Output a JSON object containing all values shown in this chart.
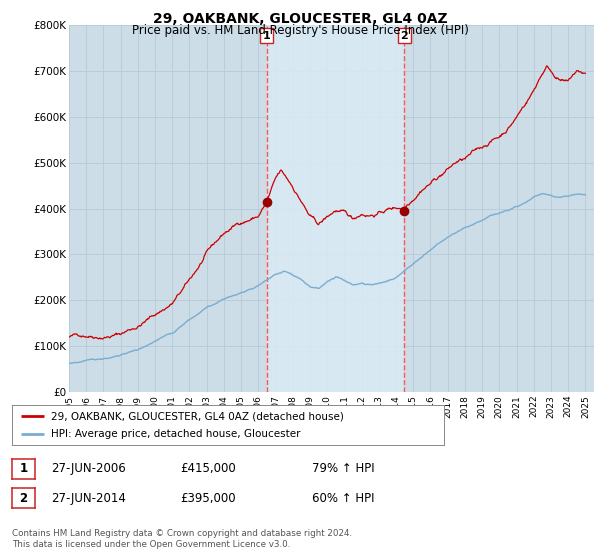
{
  "title": "29, OAKBANK, GLOUCESTER, GL4 0AZ",
  "subtitle": "Price paid vs. HM Land Registry's House Price Index (HPI)",
  "ylabel_ticks": [
    "£0",
    "£100K",
    "£200K",
    "£300K",
    "£400K",
    "£500K",
    "£600K",
    "£700K",
    "£800K"
  ],
  "ytick_values": [
    0,
    100000,
    200000,
    300000,
    400000,
    500000,
    600000,
    700000,
    800000
  ],
  "ylim": [
    0,
    800000
  ],
  "xlim_start": 1995.0,
  "xlim_end": 2025.5,
  "purchase1_date": 2006.49,
  "purchase1_price": 415000,
  "purchase1_label": "1",
  "purchase2_date": 2014.49,
  "purchase2_price": 395000,
  "purchase2_label": "2",
  "line_color_red": "#cc0000",
  "line_color_blue": "#7aadcf",
  "marker_color_red": "#990000",
  "vline_color": "#ff5555",
  "plot_bg": "#ccdde8",
  "shade_bg": "#daeaf5",
  "grid_color": "#b0c4d8",
  "legend_label_red": "29, OAKBANK, GLOUCESTER, GL4 0AZ (detached house)",
  "legend_label_blue": "HPI: Average price, detached house, Gloucester",
  "annot1_date": "27-JUN-2006",
  "annot1_price": "£415,000",
  "annot1_pct": "79% ↑ HPI",
  "annot2_date": "27-JUN-2014",
  "annot2_price": "£395,000",
  "annot2_pct": "60% ↑ HPI",
  "footer": "Contains HM Land Registry data © Crown copyright and database right 2024.\nThis data is licensed under the Open Government Licence v3.0."
}
